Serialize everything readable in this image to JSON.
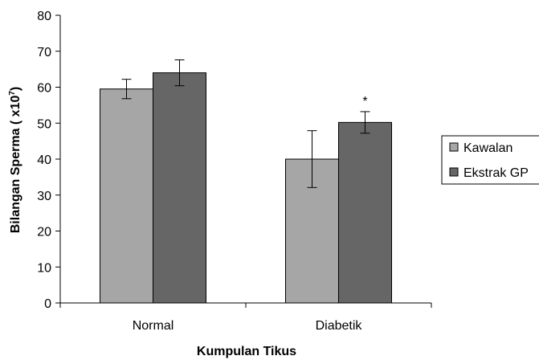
{
  "chart_data": {
    "type": "bar",
    "title": "",
    "xlabel": "Kumpulan Tikus",
    "ylabel_main": "Bilangan Sperma ( x10",
    "ylabel_sup": "7",
    "ylabel_end": ")",
    "categories": [
      "Normal",
      "Diabetik"
    ],
    "ylim": [
      0,
      80
    ],
    "yticks": [
      "0",
      "10",
      "20",
      "30",
      "40",
      "50",
      "60",
      "70",
      "80"
    ],
    "grid": false,
    "legend_position": "right",
    "series": [
      {
        "name": "Kawalan",
        "color": "#a6a6a6",
        "values": [
          59.5,
          40.0
        ],
        "errors": [
          2.7,
          7.9
        ]
      },
      {
        "name": "Ekstrak GP",
        "color": "#666666",
        "values": [
          64.0,
          50.2
        ],
        "errors": [
          3.6,
          3.0
        ]
      }
    ],
    "annotations": [
      {
        "text": "*",
        "series": 1,
        "category": 1
      }
    ]
  }
}
